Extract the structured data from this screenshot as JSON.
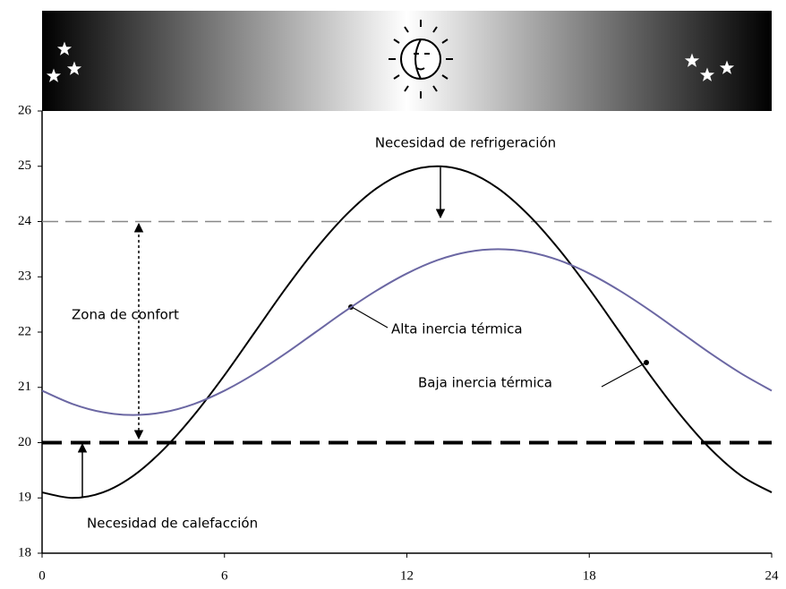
{
  "chart_data": {
    "type": "line",
    "x": [
      0,
      1,
      2,
      3,
      4,
      5,
      6,
      7,
      8,
      9,
      10,
      11,
      12,
      13,
      14,
      15,
      16,
      17,
      18,
      19,
      20,
      21,
      22,
      23,
      24
    ],
    "series": [
      {
        "name": "Baja inercia térmica",
        "color": "#000000",
        "values": [
          19.1,
          19.0,
          19.1,
          19.4,
          19.88,
          20.5,
          21.22,
          22.0,
          22.78,
          23.5,
          24.12,
          24.6,
          24.9,
          25.0,
          24.9,
          24.6,
          24.12,
          23.5,
          22.78,
          22.0,
          21.22,
          20.5,
          19.88,
          19.4,
          19.1
        ]
      },
      {
        "name": "Alta inercia térmica",
        "color": "#6b67a3",
        "values": [
          20.94,
          20.7,
          20.55,
          20.5,
          20.55,
          20.7,
          20.94,
          21.25,
          21.61,
          22.0,
          22.39,
          22.75,
          23.06,
          23.3,
          23.45,
          23.5,
          23.45,
          23.3,
          23.06,
          22.75,
          22.39,
          22.0,
          21.61,
          21.25,
          20.94
        ]
      }
    ],
    "reference_lines": [
      {
        "value": 24,
        "color": "#888888"
      },
      {
        "value": 20,
        "color": "#000000"
      }
    ],
    "annotations": [
      "Necesidad de refrigeración",
      "Zona de confort",
      "Necesidad de calefacción"
    ],
    "xlim": [
      0,
      24
    ],
    "xticks": [
      0,
      6,
      12,
      18,
      24
    ],
    "ylim": [
      18,
      26
    ],
    "yticks": [
      18,
      19,
      20,
      21,
      22,
      23,
      24,
      25,
      26
    ],
    "grid": false
  }
}
